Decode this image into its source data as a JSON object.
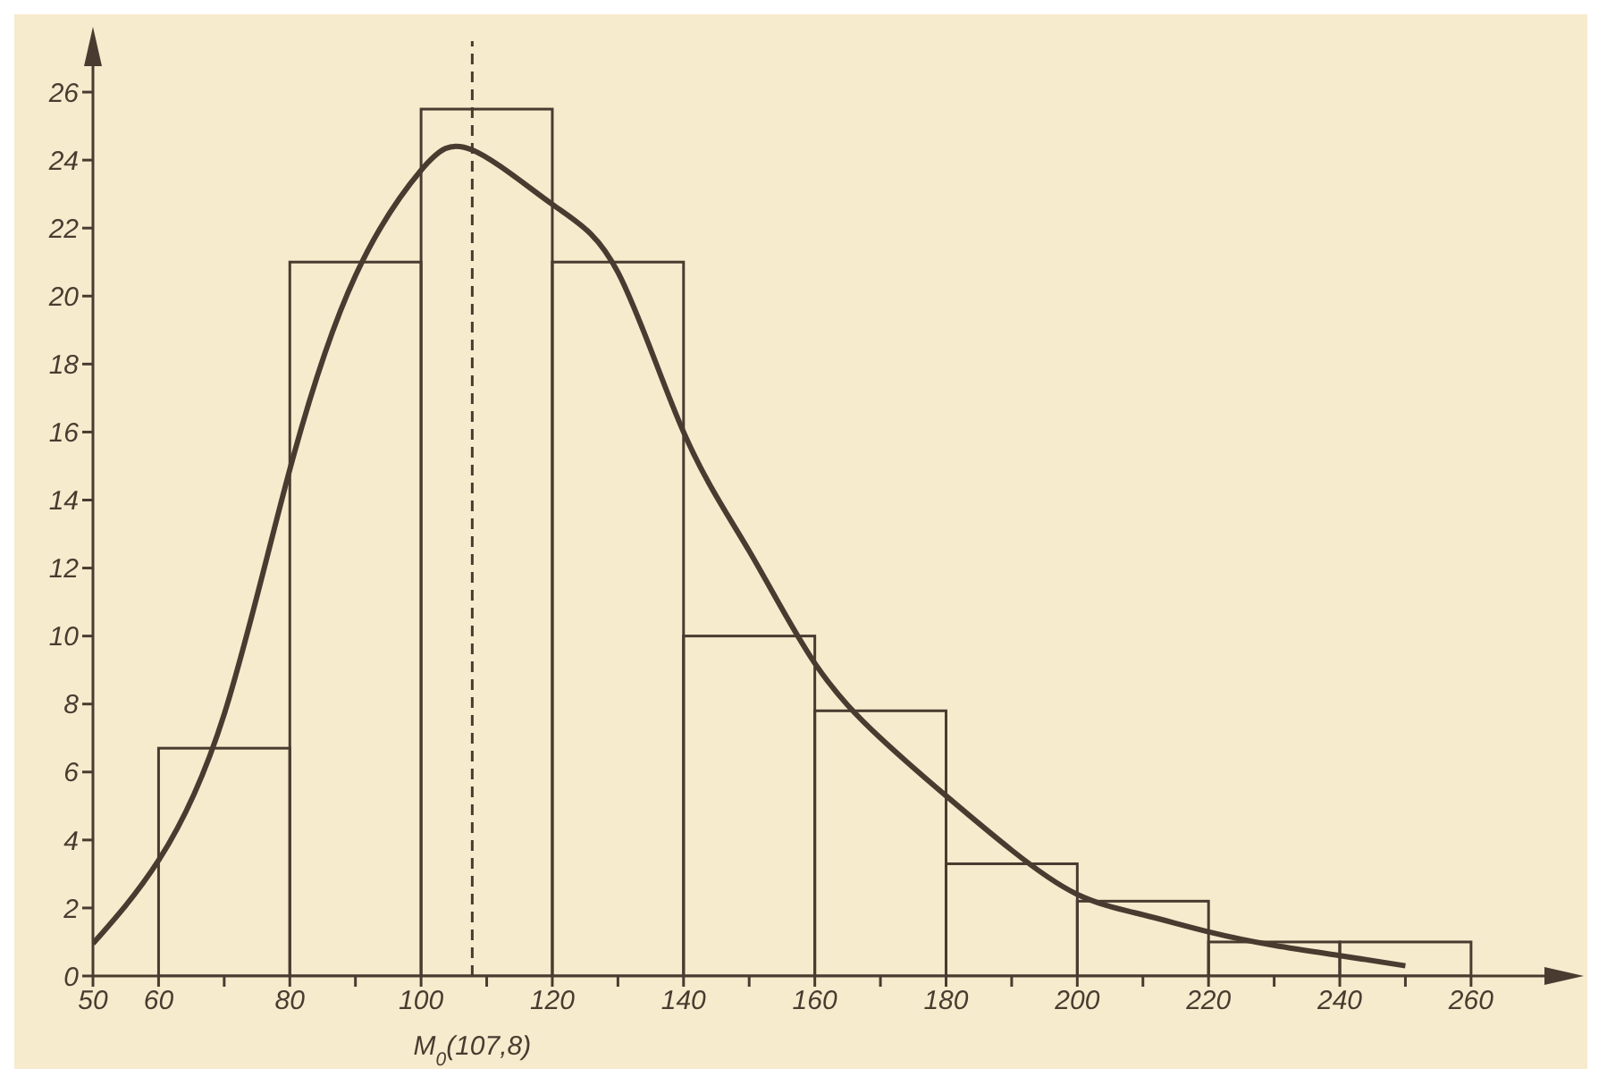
{
  "chart_data": {
    "type": "histogram",
    "bins": [
      60,
      80,
      100,
      120,
      140,
      160,
      180,
      200,
      220,
      240,
      260
    ],
    "values": [
      6.7,
      21,
      25.5,
      21,
      10,
      7.8,
      3.3,
      2.2,
      1.0,
      1.0
    ],
    "color": "#4a3b30",
    "series": [
      {
        "type": "line",
        "color": "#4a3b30",
        "x": [
          50,
          60,
          70,
          80,
          90,
          100,
          107.8,
          120,
          130,
          140,
          150,
          160,
          170,
          180,
          190,
          200,
          210,
          220,
          230,
          240,
          250
        ],
        "values": [
          0.95,
          3.4,
          7.7,
          14.9,
          20.6,
          23.7,
          24.3,
          22.7,
          20.7,
          16,
          12.5,
          9.2,
          7,
          5.3,
          3.7,
          2.4,
          1.8,
          1.3,
          0.9,
          0.6,
          0.3
        ]
      }
    ],
    "xlim": [
      50,
      275
    ],
    "xticks": [
      50,
      60,
      {
        "value": 70,
        "label": null
      },
      80,
      {
        "value": 90,
        "label": null
      },
      100,
      {
        "value": 110,
        "label": null
      },
      120,
      {
        "value": 130,
        "label": null
      },
      140,
      {
        "value": 150,
        "label": null
      },
      160,
      {
        "value": 170,
        "label": null
      },
      180,
      {
        "value": 190,
        "label": null
      },
      200,
      {
        "value": 210,
        "label": null
      },
      220,
      {
        "value": 230,
        "label": null
      },
      240,
      {
        "value": 250,
        "label": null
      },
      260
    ],
    "ylim": [
      0,
      27.5
    ],
    "yticks": [
      0,
      2,
      4,
      6,
      8,
      10,
      12,
      14,
      16,
      18,
      20,
      22,
      24,
      26
    ],
    "ref_lines": [
      {
        "axis": "x",
        "value": 107.8,
        "label": "M$_{0}$(107,8)",
        "line_style": "dashed",
        "color": "#4a3b30"
      }
    ],
    "grid": false,
    "legend": false
  }
}
